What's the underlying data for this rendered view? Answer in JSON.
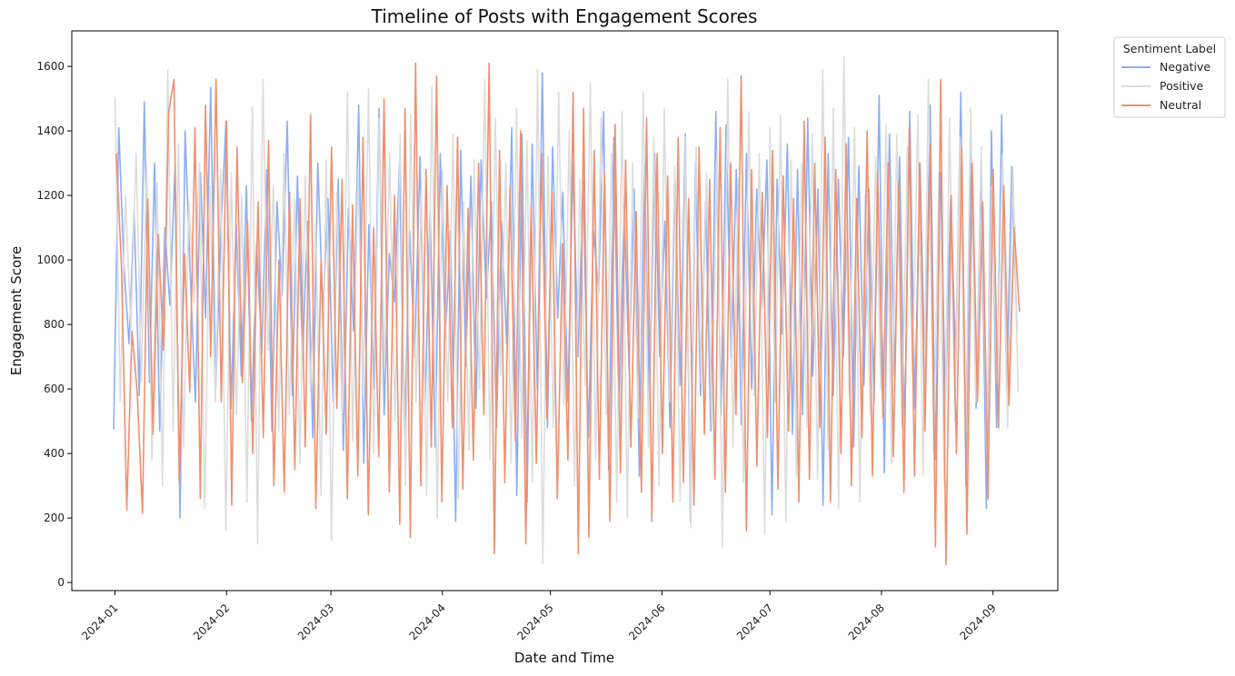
{
  "chart_data": {
    "type": "line",
    "title": "Timeline of Posts with Engagement Scores",
    "xlabel": "Date and Time",
    "ylabel": "Engagement Score",
    "xlim": [
      "2023-12-20",
      "2024-09-19"
    ],
    "ylim": [
      -25,
      1710
    ],
    "x_ticks": [
      "2024-01",
      "2024-02",
      "2024-03",
      "2024-04",
      "2024-05",
      "2024-06",
      "2024-07",
      "2024-08",
      "2024-09"
    ],
    "y_ticks": [
      0,
      200,
      400,
      600,
      800,
      1000,
      1200,
      1400,
      1600
    ],
    "x_start": "2024-01-01",
    "x_end": "2024-09-08",
    "grid": false,
    "legend": {
      "title": "Sentiment Label",
      "placement": "outside-upper-right"
    },
    "series": [
      {
        "name": "Negative",
        "color": "#8caef6",
        "values": [
          475,
          1410,
          980,
          740,
          1150,
          580,
          1490,
          620,
          1300,
          470,
          1100,
          860,
          1280,
          200,
          1400,
          950,
          560,
          1270,
          820,
          1535,
          600,
          1090,
          1430,
          540,
          1110,
          640,
          1230,
          500,
          1050,
          710,
          1280,
          470,
          1180,
          890,
          1430,
          580,
          1260,
          690,
          1120,
          450,
          1300,
          840,
          1190,
          560,
          1250,
          410,
          1160,
          780,
          1480,
          370,
          1110,
          600,
          1470,
          520,
          1020,
          870,
          1300,
          460,
          1090,
          700,
          1320,
          550,
          1150,
          420,
          1330,
          760,
          1090,
          190,
          1340,
          670,
          1260,
          540,
          1310,
          880,
          1180,
          480,
          1120,
          740,
          1410,
          270,
          1390,
          250,
          1360,
          600,
          1580,
          480,
          1350,
          820,
          1210,
          560,
          1300,
          700,
          1250,
          450,
          1090,
          900,
          1460,
          350,
          1380,
          520,
          1170,
          660,
          1220,
          330,
          1300,
          560,
          1330,
          700,
          1120,
          480,
          1250,
          610,
          1390,
          190,
          1300,
          580,
          1180,
          470,
          1460,
          520,
          1420,
          700,
          1280,
          490,
          1330,
          600,
          1220,
          850,
          1310,
          210,
          1250,
          770,
          1360,
          460,
          1280,
          520,
          1440,
          640,
          1220,
          240,
          1330,
          580,
          1250,
          700,
          1380,
          420,
          1290,
          610,
          1220,
          560,
          1510,
          340,
          1390,
          640,
          1320,
          470,
          1460,
          540,
          1300,
          600,
          1480,
          380,
          1270,
          560,
          1190,
          690,
          1520,
          300,
          1370,
          540,
          1280,
          230,
          1400,
          480,
          1450,
          600,
          1290,
          780
        ]
      },
      {
        "name": "Positive",
        "color": "#dbdbdb",
        "values": [
          1505,
          560,
          1200,
          790,
          1330,
          620,
          1290,
          380,
          1240,
          300,
          1590,
          470,
          1360,
          420,
          1180,
          870,
          1300,
          230,
          1230,
          560,
          1280,
          160,
          1270,
          520,
          1200,
          250,
          1475,
          120,
          1560,
          720,
          1230,
          470,
          1330,
          520,
          1190,
          370,
          1260,
          590,
          1110,
          270,
          1310,
          130,
          1210,
          490,
          1520,
          440,
          1280,
          580,
          1530,
          400,
          1440,
          670,
          1330,
          500,
          1390,
          300,
          1450,
          560,
          1220,
          270,
          1540,
          200,
          1280,
          560,
          1390,
          260,
          1180,
          410,
          1310,
          600,
          1560,
          380,
          1440,
          640,
          1300,
          370,
          1470,
          450,
          1370,
          310,
          1590,
          60,
          1320,
          480,
          1520,
          550,
          1400,
          300,
          1250,
          610,
          1550,
          380,
          1440,
          520,
          1330,
          250,
          1460,
          200,
          1300,
          510,
          1520,
          420,
          1380,
          300,
          1470,
          560,
          1290,
          250,
          1380,
          170,
          1350,
          620,
          1270,
          470,
          1340,
          110,
          1560,
          420,
          1250,
          310,
          1460,
          580,
          1330,
          150,
          1410,
          560,
          1450,
          190,
          1310,
          330,
          1300,
          480,
          1390,
          320,
          1590,
          410,
          1470,
          230,
          1630,
          580,
          1410,
          250,
          1200,
          520,
          1320,
          600,
          1420,
          370,
          1390,
          480,
          1350,
          640,
          1450,
          330,
          1560,
          410,
          1270,
          300,
          1440,
          500,
          1380,
          380,
          1470,
          560,
          1350,
          430,
          1230,
          620,
          1330,
          480,
          1280,
          590
        ]
      },
      {
        "name": "Neutral",
        "color": "#f08f6e",
        "values": [
          1330,
          980,
          225,
          780,
          590,
          215,
          1190,
          460,
          1080,
          720,
          1460,
          1560,
          310,
          1020,
          590,
          1410,
          260,
          1480,
          700,
          1560,
          560,
          1430,
          240,
          1350,
          620,
          1120,
          400,
          1180,
          450,
          1370,
          300,
          1000,
          280,
          1210,
          350,
          1190,
          420,
          1450,
          230,
          1000,
          460,
          1350,
          540,
          1250,
          260,
          1170,
          330,
          1380,
          210,
          1100,
          390,
          1500,
          280,
          1200,
          180,
          1470,
          140,
          1610,
          300,
          1280,
          420,
          1570,
          250,
          1230,
          480,
          1380,
          290,
          1160,
          380,
          1300,
          520,
          1610,
          90,
          1340,
          310,
          1230,
          440,
          1400,
          120,
          1170,
          370,
          1330,
          510,
          1210,
          260,
          1050,
          380,
          1520,
          90,
          1470,
          140,
          1340,
          320,
          1270,
          190,
          1420,
          340,
          1310,
          420,
          1150,
          280,
          1440,
          190,
          1330,
          400,
          1260,
          250,
          1380,
          310,
          1190,
          240,
          1350,
          460,
          1250,
          320,
          1410,
          280,
          1300,
          520,
          1570,
          160,
          1280,
          360,
          1210,
          450,
          1340,
          290,
          1260,
          470,
          1190,
          250,
          1430,
          320,
          1300,
          480,
          1380,
          250,
          1280,
          400,
          1360,
          300,
          1190,
          450,
          1400,
          330,
          1270,
          510,
          1300,
          390,
          1240,
          280,
          1410,
          330,
          1300,
          470,
          1360,
          110,
          1560,
          55,
          1200,
          400,
          1350,
          150,
          1300,
          560,
          1180,
          260,
          1280,
          480,
          1230,
          550,
          1100,
          840
        ]
      }
    ]
  }
}
